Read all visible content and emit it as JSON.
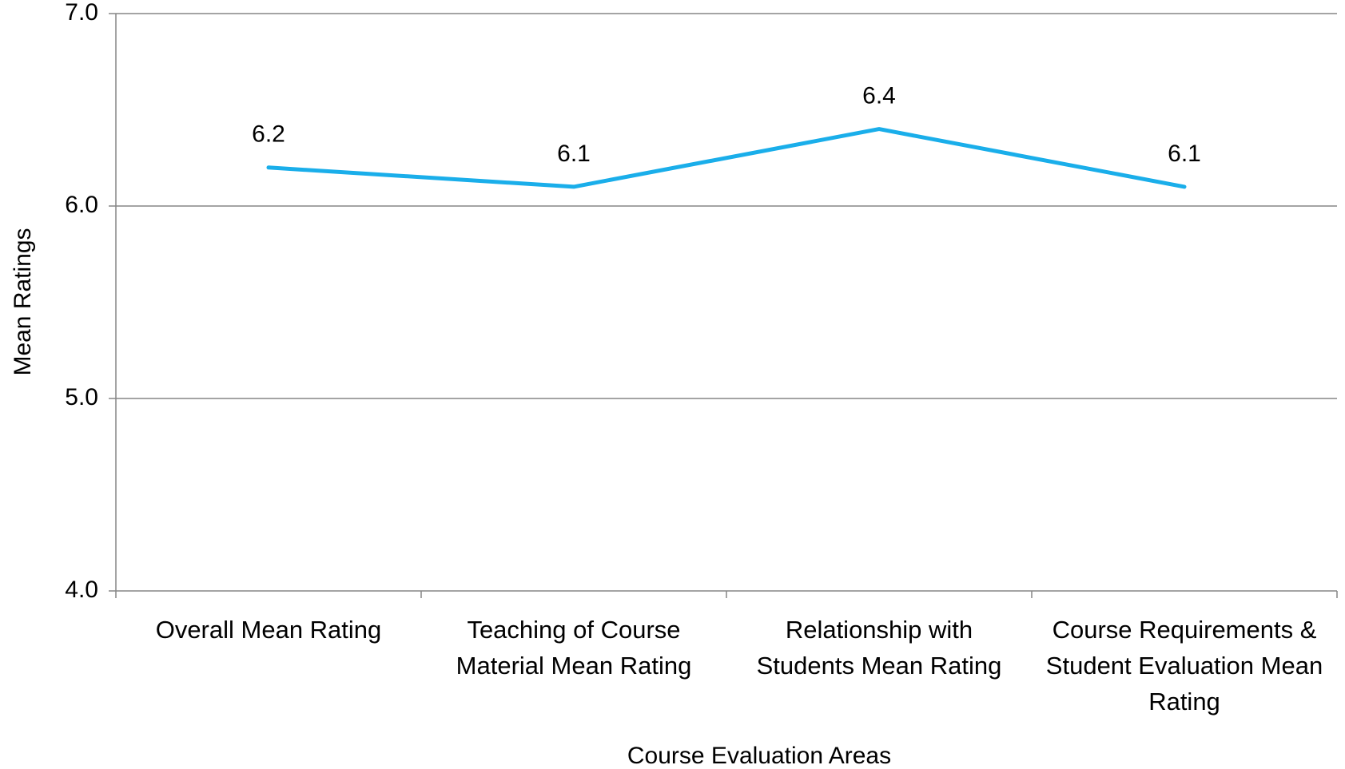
{
  "chart_data": {
    "type": "line",
    "x_label": "Course Evaluation Areas",
    "y_label": "Mean Ratings",
    "categories": [
      "Overall Mean Rating",
      "Teaching of Course Material Mean Rating",
      "Relationship with Students Mean Rating",
      "Course Requirements & Student Evaluation Mean Rating"
    ],
    "values": [
      6.2,
      6.1,
      6.4,
      6.1
    ],
    "color": "#1aaeea",
    "ylim": [
      4,
      7
    ],
    "yticks": [
      {
        "value": 4,
        "label": "4.0"
      },
      {
        "value": 5,
        "label": "5.0"
      },
      {
        "value": 6,
        "label": "6.0"
      },
      {
        "value": 7,
        "label": "7.0"
      }
    ],
    "grid": true
  }
}
